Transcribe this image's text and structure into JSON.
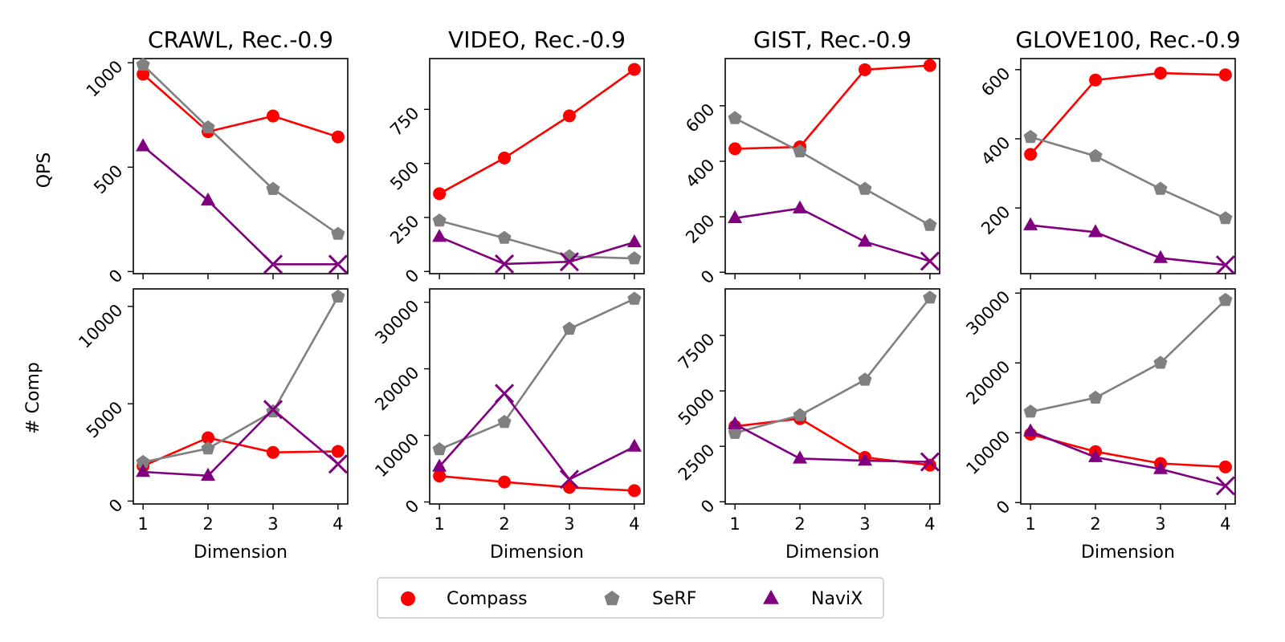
{
  "chart_data": {
    "type": "line",
    "x_label": "Dimension",
    "x_ticks": [
      "1",
      "2",
      "3",
      "4"
    ],
    "x": [
      1,
      2,
      3,
      4
    ],
    "row_labels": [
      "QPS",
      "# Comp"
    ],
    "series_styles": [
      {
        "name": "Compass",
        "color": "#ff0000",
        "marker": "circle"
      },
      {
        "name": "SeRF",
        "color": "#808080",
        "marker": "pentagon"
      },
      {
        "name": "NaviX",
        "color": "#800080",
        "marker": "triangle"
      }
    ],
    "legend": [
      "Compass",
      "SeRF",
      "NaviX"
    ],
    "legend_position": "bottom-center",
    "panels": [
      {
        "title": "CRAWL, Rec.-0.9",
        "row": 0,
        "col": 0,
        "ylim": [
          -10,
          1020
        ],
        "yticks": [
          0,
          500,
          1000
        ],
        "ytick_labels": [
          "0",
          "500",
          "1000"
        ],
        "series": [
          {
            "name": "Compass",
            "values": [
              945,
              670,
              745,
              645
            ],
            "markers": [
              "o",
              "o",
              "o",
              "o"
            ]
          },
          {
            "name": "SeRF",
            "values": [
              990,
              690,
              395,
              180
            ],
            "markers": [
              "p",
              "p",
              "p",
              "p"
            ]
          },
          {
            "name": "NaviX",
            "values": [
              600,
              340,
              35,
              35
            ],
            "markers": [
              "^",
              "^",
              "x",
              "x"
            ]
          }
        ]
      },
      {
        "title": "VIDEO, Rec.-0.9",
        "row": 0,
        "col": 1,
        "ylim": [
          -10,
          985
        ],
        "yticks": [
          0,
          250,
          500,
          750
        ],
        "ytick_labels": [
          "0",
          "250",
          "500",
          "750"
        ],
        "series": [
          {
            "name": "Compass",
            "values": [
              360,
              525,
              720,
              935
            ],
            "markers": [
              "o",
              "o",
              "o",
              "o"
            ]
          },
          {
            "name": "SeRF",
            "values": [
              235,
              155,
              70,
              60
            ],
            "markers": [
              "p",
              "p",
              "p",
              "p"
            ]
          },
          {
            "name": "NaviX",
            "values": [
              160,
              35,
              45,
              135
            ],
            "markers": [
              "^",
              "x",
              "x",
              "^"
            ]
          }
        ]
      },
      {
        "title": "GIST, Rec.-0.9",
        "row": 0,
        "col": 2,
        "ylim": [
          -5,
          770
        ],
        "yticks": [
          0,
          200,
          400,
          600
        ],
        "ytick_labels": [
          "0",
          "200",
          "400",
          "600"
        ],
        "series": [
          {
            "name": "Compass",
            "values": [
              445,
              452,
              730,
              745
            ],
            "markers": [
              "o",
              "o",
              "o",
              "o"
            ]
          },
          {
            "name": "SeRF",
            "values": [
              555,
              435,
              300,
              170
            ],
            "markers": [
              "p",
              "p",
              "p",
              "p"
            ]
          },
          {
            "name": "NaviX",
            "values": [
              195,
              230,
              110,
              40
            ],
            "markers": [
              "^",
              "^",
              "^",
              "x"
            ]
          }
        ]
      },
      {
        "title": "GLOVE100, Rec.-0.9",
        "row": 0,
        "col": 3,
        "ylim": [
          10,
          632
        ],
        "yticks": [
          200,
          400,
          600
        ],
        "ytick_labels": [
          "200",
          "400",
          "600"
        ],
        "series": [
          {
            "name": "Compass",
            "values": [
              355,
              570,
              590,
              585
            ],
            "markers": [
              "o",
              "o",
              "o",
              "o"
            ]
          },
          {
            "name": "SeRF",
            "values": [
              405,
              350,
              255,
              170
            ],
            "markers": [
              "p",
              "p",
              "p",
              "p"
            ]
          },
          {
            "name": "NaviX",
            "values": [
              150,
              130,
              55,
              35
            ],
            "markers": [
              "^",
              "^",
              "^",
              "x"
            ]
          }
        ]
      },
      {
        "title": "",
        "row": 1,
        "col": 0,
        "ylim": [
          -150,
          10900
        ],
        "yticks": [
          0,
          5000,
          10000
        ],
        "ytick_labels": [
          "0",
          "5000",
          "10000"
        ],
        "series": [
          {
            "name": "Compass",
            "values": [
              1800,
              3250,
              2500,
              2550
            ],
            "markers": [
              "o",
              "o",
              "o",
              "o"
            ]
          },
          {
            "name": "SeRF",
            "values": [
              2000,
              2700,
              4600,
              10500
            ],
            "markers": [
              "p",
              "p",
              "p",
              "p"
            ]
          },
          {
            "name": "NaviX",
            "values": [
              1500,
              1300,
              4700,
              1900
            ],
            "markers": [
              "^",
              "^",
              "x",
              "x"
            ]
          }
        ]
      },
      {
        "title": "",
        "row": 1,
        "col": 1,
        "ylim": [
          -300,
          32000
        ],
        "yticks": [
          0,
          10000,
          20000,
          30000
        ],
        "ytick_labels": [
          "0",
          "10000",
          "20000",
          "30000"
        ],
        "series": [
          {
            "name": "Compass",
            "values": [
              3900,
              3000,
              2200,
              1700
            ],
            "markers": [
              "o",
              "o",
              "o",
              "o"
            ]
          },
          {
            "name": "SeRF",
            "values": [
              7900,
              12000,
              26000,
              30500
            ],
            "markers": [
              "p",
              "p",
              "p",
              "p"
            ]
          },
          {
            "name": "NaviX",
            "values": [
              5300,
              16300,
              3400,
              8300
            ],
            "markers": [
              "^",
              "x",
              "x",
              "^"
            ]
          }
        ]
      },
      {
        "title": "",
        "row": 1,
        "col": 2,
        "ylim": [
          -100,
          9600
        ],
        "yticks": [
          0,
          2500,
          5000,
          7500
        ],
        "ytick_labels": [
          "0",
          "2500",
          "5000",
          "7500"
        ],
        "series": [
          {
            "name": "Compass",
            "values": [
              3400,
              3750,
              2000,
              1650
            ],
            "markers": [
              "o",
              "o",
              "o",
              "o"
            ]
          },
          {
            "name": "SeRF",
            "values": [
              3100,
              3900,
              5500,
              9200
            ],
            "markers": [
              "p",
              "p",
              "p",
              "p"
            ]
          },
          {
            "name": "NaviX",
            "values": [
              3500,
              1950,
              1850,
              1800
            ],
            "markers": [
              "^",
              "^",
              "^",
              "x"
            ]
          }
        ]
      },
      {
        "title": "",
        "row": 1,
        "col": 3,
        "ylim": [
          -200,
          30600
        ],
        "yticks": [
          0,
          10000,
          20000,
          30000
        ],
        "ytick_labels": [
          "0",
          "10000",
          "20000",
          "30000"
        ],
        "series": [
          {
            "name": "Compass",
            "values": [
              9800,
              7300,
              5600,
              5100
            ],
            "markers": [
              "o",
              "o",
              "o",
              "o"
            ]
          },
          {
            "name": "SeRF",
            "values": [
              13000,
              15000,
              20000,
              29000
            ],
            "markers": [
              "p",
              "p",
              "p",
              "p"
            ]
          },
          {
            "name": "NaviX",
            "values": [
              10200,
              6500,
              4800,
              2400
            ],
            "markers": [
              "^",
              "^",
              "^",
              "x"
            ]
          }
        ]
      }
    ]
  }
}
